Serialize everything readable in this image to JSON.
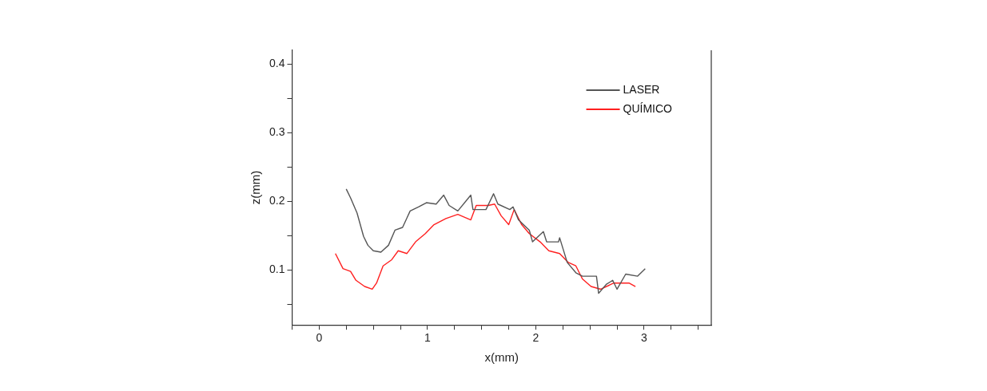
{
  "chart_data": {
    "type": "line",
    "xlabel": "x(mm)",
    "ylabel": "z(mm)",
    "xlim": [
      -0.25,
      3.62
    ],
    "ylim": [
      0.02,
      0.42
    ],
    "xticks": [
      {
        "value": -0.25,
        "label": null
      },
      0,
      {
        "value": 0.25,
        "label": null
      },
      {
        "value": 0.5,
        "label": null
      },
      {
        "value": 0.75,
        "label": null
      },
      1,
      {
        "value": 1.25,
        "label": null
      },
      {
        "value": 1.5,
        "label": null
      },
      {
        "value": 1.75,
        "label": null
      },
      2,
      {
        "value": 2.25,
        "label": null
      },
      {
        "value": 2.5,
        "label": null
      },
      {
        "value": 2.75,
        "label": null
      },
      3,
      {
        "value": 3.25,
        "label": null
      },
      {
        "value": 3.5,
        "label": null
      }
    ],
    "yticks": [
      {
        "value": 0.05,
        "label": null
      },
      0.1,
      {
        "value": 0.15,
        "label": null
      },
      0.2,
      {
        "value": 0.25,
        "label": null
      },
      0.3,
      {
        "value": 0.35,
        "label": null
      },
      0.4
    ],
    "grid": false,
    "legend": "top right",
    "marker": "none",
    "line_style": "solid",
    "series": [
      {
        "name": "LASER",
        "color": "#555555",
        "x": [
          0.25,
          0.29,
          0.35,
          0.41,
          0.45,
          0.5,
          0.57,
          0.64,
          0.7,
          0.77,
          0.84,
          0.92,
          0.99,
          1.08,
          1.15,
          1.2,
          1.28,
          1.4,
          1.42,
          1.54,
          1.61,
          1.65,
          1.76,
          1.79,
          1.84,
          1.94,
          1.97,
          2.07,
          2.1,
          2.21,
          2.22,
          2.29,
          2.37,
          2.43,
          2.56,
          2.58,
          2.65,
          2.71,
          2.75,
          2.83,
          2.94,
          3.01
        ],
        "values": [
          0.218,
          0.205,
          0.183,
          0.149,
          0.136,
          0.128,
          0.126,
          0.136,
          0.158,
          0.162,
          0.186,
          0.192,
          0.198,
          0.196,
          0.209,
          0.194,
          0.186,
          0.209,
          0.188,
          0.188,
          0.211,
          0.196,
          0.188,
          0.192,
          0.173,
          0.158,
          0.141,
          0.156,
          0.141,
          0.141,
          0.147,
          0.111,
          0.096,
          0.091,
          0.091,
          0.066,
          0.079,
          0.085,
          0.072,
          0.094,
          0.091,
          0.102
        ]
      },
      {
        "name": "QUÍMICO",
        "color": "#ff2020",
        "x": [
          0.15,
          0.22,
          0.29,
          0.34,
          0.42,
          0.49,
          0.53,
          0.59,
          0.67,
          0.73,
          0.81,
          0.89,
          0.98,
          1.06,
          1.17,
          1.28,
          1.4,
          1.45,
          1.56,
          1.62,
          1.68,
          1.75,
          1.8,
          1.87,
          1.94,
          2.04,
          2.12,
          2.22,
          2.3,
          2.37,
          2.43,
          2.51,
          2.6,
          2.72,
          2.8,
          2.86,
          2.92
        ],
        "values": [
          0.124,
          0.102,
          0.098,
          0.085,
          0.076,
          0.072,
          0.081,
          0.106,
          0.115,
          0.128,
          0.124,
          0.141,
          0.153,
          0.166,
          0.175,
          0.181,
          0.173,
          0.194,
          0.194,
          0.196,
          0.179,
          0.166,
          0.188,
          0.166,
          0.153,
          0.141,
          0.128,
          0.124,
          0.111,
          0.106,
          0.087,
          0.076,
          0.072,
          0.081,
          0.081,
          0.081,
          0.076
        ]
      }
    ]
  }
}
